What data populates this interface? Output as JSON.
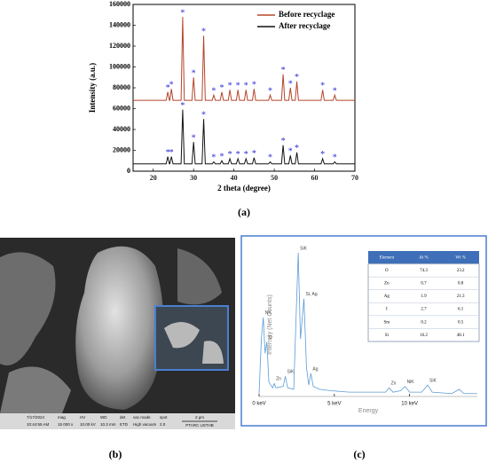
{
  "chart_data": [
    {
      "type": "line",
      "xlabel": "2 theta (degree)",
      "ylabel": "Intensity (a.u.)",
      "x": [
        15,
        23.2,
        23.6,
        24.0,
        24.1,
        24.5,
        24.9,
        26.9,
        27.3,
        27.7,
        29.6,
        30,
        30.4,
        32.1,
        32.5,
        32.9,
        34.6,
        35,
        35.4,
        36.6,
        37,
        37.4,
        38.6,
        39,
        39.4,
        40.6,
        41,
        41.4,
        42.6,
        43,
        43.4,
        44.6,
        45,
        45.4,
        48.6,
        49,
        49.4,
        51.8,
        52.2,
        52.6,
        53.6,
        54,
        54.4,
        55.2,
        55.6,
        56.0,
        61.6,
        62,
        62.4,
        64.6,
        65,
        65.4,
        70
      ],
      "series": [
        {
          "name": "Before recyclage",
          "color": "#b5452a",
          "values": [
            68000,
            68000,
            76000,
            68000,
            68000,
            79000,
            68000,
            68000,
            148000,
            68000,
            68000,
            90000,
            68000,
            68000,
            130000,
            68000,
            68000,
            73000,
            68000,
            68000,
            76000,
            68000,
            68000,
            78000,
            68000,
            68000,
            78000,
            68000,
            68000,
            78000,
            68000,
            68000,
            79000,
            68000,
            68000,
            73000,
            68000,
            68000,
            93000,
            68000,
            68000,
            80000,
            68000,
            68000,
            86000,
            68000,
            68000,
            78000,
            68000,
            68000,
            73000,
            68000,
            68000
          ]
        },
        {
          "name": "After recyclage",
          "color": "#111111",
          "values": [
            7000,
            7000,
            14000,
            7000,
            7000,
            14000,
            7000,
            7000,
            59000,
            7000,
            7000,
            28000,
            7000,
            7000,
            50000,
            7000,
            7000,
            9000,
            7000,
            7000,
            10000,
            7000,
            7000,
            12000,
            7000,
            7000,
            12000,
            7000,
            7000,
            12000,
            7000,
            7000,
            13000,
            7000,
            7000,
            9000,
            7000,
            7000,
            25000,
            7000,
            7000,
            15000,
            7000,
            7000,
            18000,
            7000,
            7000,
            12000,
            7000,
            7000,
            9000,
            7000,
            7000
          ]
        }
      ],
      "point_labels": [
        null,
        null,
        "*",
        null,
        null,
        "*",
        null,
        null,
        "*",
        null,
        null,
        "*",
        null,
        null,
        "*",
        null,
        null,
        "*",
        null,
        null,
        "*",
        null,
        null,
        "*",
        null,
        null,
        "*",
        null,
        null,
        "*",
        null,
        null,
        "*",
        null,
        null,
        "*",
        null,
        null,
        "*",
        null,
        null,
        "*",
        null,
        null,
        "*",
        null,
        null,
        "*",
        null,
        null,
        "*",
        null,
        null
      ],
      "point_label_color": "#2b2bd6",
      "xlim": [
        15,
        70
      ],
      "xticks": [
        20,
        30,
        40,
        50,
        60,
        70
      ],
      "ylim": [
        0,
        160000
      ],
      "yticks": [
        0,
        20000,
        40000,
        60000,
        80000,
        100000,
        120000,
        140000,
        160000
      ],
      "legend": "upper right"
    },
    {
      "type": "line",
      "xlabel": "Energy",
      "ylabel": "Intensity (Net Counts)",
      "x": [
        0,
        0.15,
        0.28,
        0.4,
        0.52,
        0.65,
        0.9,
        1.01,
        1.12,
        1.6,
        1.74,
        1.9,
        2.3,
        2.6,
        2.75,
        2.98,
        3.15,
        3.3,
        3.44,
        3.6,
        4.0,
        4.8,
        6.0,
        8.4,
        8.64,
        8.9,
        9.4,
        9.7,
        10.0,
        10.8,
        11.2,
        11.5,
        12.8,
        13.3,
        13.6,
        14.5
      ],
      "series": [
        {
          "color": "#5b9bd5",
          "values": [
            2,
            40,
            55,
            30,
            38,
            10,
            6,
            9,
            6,
            7,
            14,
            6,
            5,
            100,
            40,
            68,
            20,
            8,
            16,
            7,
            5,
            4,
            3,
            3,
            6,
            3,
            4,
            7,
            3,
            3,
            8,
            3,
            2,
            5,
            2,
            2
          ]
        }
      ],
      "point_labels": [
        null,
        null,
        "NK",
        null,
        "O",
        null,
        null,
        "Zn",
        null,
        null,
        "SiK",
        null,
        null,
        "SiK",
        null,
        "Si, Ag",
        null,
        null,
        "Ag",
        null,
        null,
        null,
        null,
        null,
        "Zn",
        null,
        null,
        "NiK",
        null,
        null,
        "SiK",
        null,
        null,
        null,
        null,
        null
      ],
      "point_label_color": "#444444",
      "xlim": [
        0,
        14.5
      ],
      "xticks": [
        {
          "value": 0,
          "label": "0 keV"
        },
        {
          "value": 5,
          "label": "5 keV"
        },
        {
          "value": 10,
          "label": "10 keV"
        }
      ],
      "ylim": [
        0,
        100
      ]
    }
  ],
  "eds_table": {
    "header": [
      "Element",
      "At %",
      "Wt %"
    ],
    "rows": [
      [
        "O",
        "74.3",
        "23.2"
      ],
      [
        "Zn",
        "0.7",
        "0.8"
      ],
      [
        "Ag",
        "1.9",
        "21.3"
      ],
      [
        "I",
        "2.7",
        "6.1"
      ],
      [
        "Sm",
        "0.2",
        "0.5"
      ],
      [
        "Si",
        "16.2",
        "48.1"
      ]
    ]
  },
  "sem": {
    "date": "7/17/2024",
    "time": "10:44:55 AM",
    "mag_label": "mag",
    "mag": "15 000 x",
    "hv_label": "HV",
    "hv": "10.00 kV",
    "wd_label": "WD",
    "wd": "10.3 mm",
    "det_label": "det",
    "det": "ETD",
    "vac_label": "vac mode",
    "vac": "High vacuum",
    "spot_label": "spot",
    "spot": "2.0",
    "scale": "2 μm",
    "lab": "PTARC USTHB"
  },
  "panels": [
    "(a)",
    "(b)",
    "(c)"
  ]
}
